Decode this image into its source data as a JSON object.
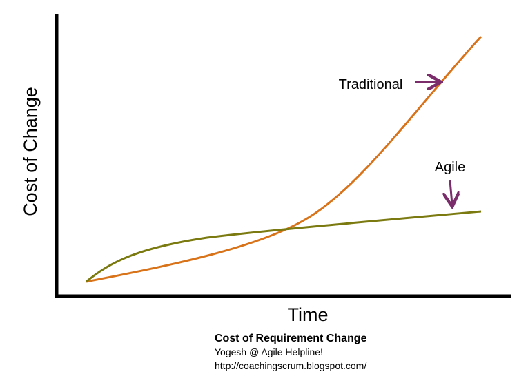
{
  "diagram": {
    "y_axis_label": "Cost of Change",
    "x_axis_label": "Time",
    "curves": [
      {
        "label": "Traditional"
      },
      {
        "label": "Agile"
      }
    ],
    "caption": {
      "title": "Cost of Requirement Change",
      "author": "Yogesh @ Agile Helpline!",
      "url": "http://coachingscrum.blogspot.com/"
    }
  }
}
